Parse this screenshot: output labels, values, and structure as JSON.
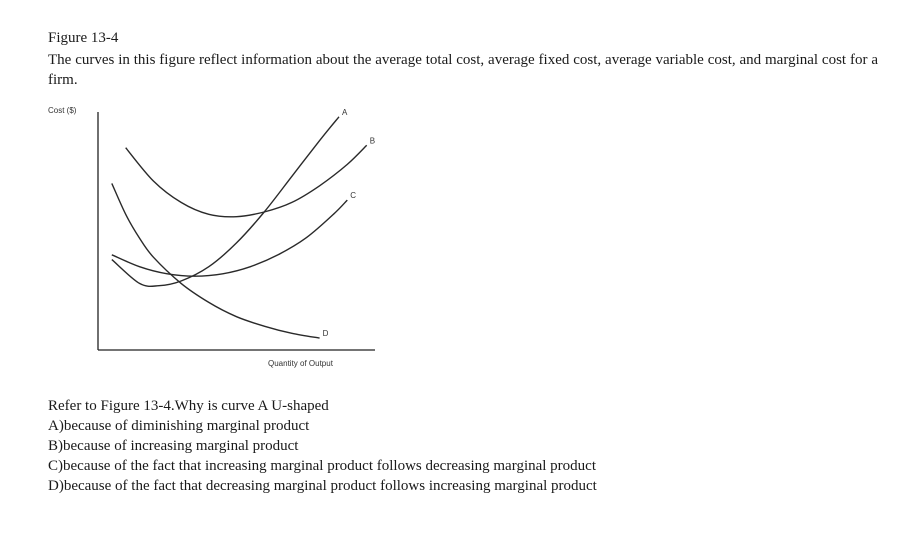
{
  "figure": {
    "title": "Figure 13-4",
    "caption": "The curves in this figure reflect information about the average total cost, average fixed cost, average variable cost, and marginal cost for a firm."
  },
  "chart_data": {
    "type": "line",
    "ylabel": "Cost ($)",
    "xlabel": "Quantity of Output",
    "grid": false,
    "xlim": [
      0,
      100
    ],
    "ylim": [
      0,
      100
    ],
    "series": [
      {
        "name": "A",
        "x": [
          5,
          15,
          22,
          30,
          40,
          50,
          60,
          70,
          80,
          87
        ],
        "y": [
          38,
          28,
          27,
          29,
          35,
          45,
          58,
          73,
          88,
          98
        ]
      },
      {
        "name": "B",
        "x": [
          10,
          20,
          30,
          40,
          50,
          60,
          70,
          80,
          90,
          97
        ],
        "y": [
          85,
          71,
          62,
          57,
          56,
          58,
          62,
          69,
          78,
          86
        ]
      },
      {
        "name": "C",
        "x": [
          5,
          15,
          25,
          35,
          45,
          55,
          65,
          75,
          85,
          90
        ],
        "y": [
          40,
          35,
          32,
          31,
          32,
          35,
          40,
          47,
          57,
          63
        ]
      },
      {
        "name": "D",
        "x": [
          5,
          10,
          15,
          20,
          30,
          40,
          50,
          60,
          70,
          80
        ],
        "y": [
          70,
          57,
          47,
          39,
          28,
          20,
          14,
          10,
          7,
          5
        ]
      }
    ]
  },
  "question": {
    "prompt": "Refer to Figure 13-4.Why is curve A U-shaped",
    "options": [
      "A)because of diminishing marginal product",
      "B)because of increasing marginal product",
      "C)because of the fact that increasing marginal product follows decreasing marginal product",
      "D)because of the fact that decreasing marginal product follows increasing marginal product"
    ]
  }
}
